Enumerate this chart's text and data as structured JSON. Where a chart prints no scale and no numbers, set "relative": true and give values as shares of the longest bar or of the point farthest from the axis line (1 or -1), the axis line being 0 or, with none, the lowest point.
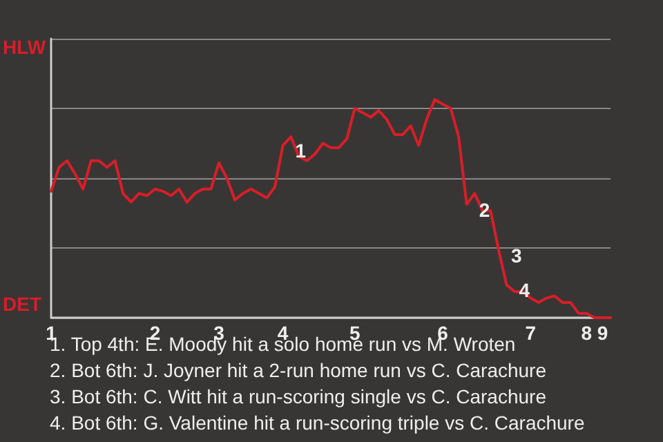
{
  "chart_data": {
    "type": "line",
    "relative": true,
    "categories": [
      "1",
      null,
      null,
      null,
      null,
      null,
      null,
      null,
      null,
      null,
      null,
      null,
      null,
      "2",
      null,
      null,
      null,
      null,
      null,
      null,
      null,
      "3",
      null,
      null,
      null,
      null,
      null,
      null,
      null,
      "4",
      null,
      null,
      null,
      null,
      null,
      null,
      null,
      null,
      "5",
      null,
      null,
      null,
      null,
      null,
      null,
      null,
      null,
      null,
      null,
      "6",
      null,
      null,
      null,
      null,
      null,
      null,
      null,
      null,
      null,
      null,
      "7",
      null,
      null,
      null,
      null,
      null,
      null,
      "8",
      null,
      "9",
      null
    ],
    "series": [
      {
        "color": "#d81e28",
        "values": [
          0.58,
          0.69,
          0.72,
          0.66,
          0.59,
          0.72,
          0.72,
          0.69,
          0.72,
          0.57,
          0.53,
          0.57,
          0.56,
          0.59,
          0.58,
          0.56,
          0.59,
          0.53,
          0.57,
          0.59,
          0.59,
          0.71,
          0.64,
          0.54,
          0.57,
          0.59,
          0.57,
          0.55,
          0.6,
          0.79,
          0.83,
          0.74,
          0.72,
          0.75,
          0.8,
          0.78,
          0.78,
          0.82,
          0.96,
          0.94,
          0.92,
          0.95,
          0.91,
          0.84,
          0.84,
          0.88,
          0.79,
          0.91,
          1,
          0.98,
          0.96,
          0.83,
          0.52,
          0.57,
          0.49,
          0.49,
          0.31,
          0.15,
          0.12,
          0.12,
          0.09,
          0.07,
          0.09,
          0.1,
          0.07,
          0.07,
          0.02,
          0.02,
          0,
          0,
          0
        ]
      }
    ],
    "grid": "y",
    "marker": "none",
    "annotations": [
      "HLW",
      "DET",
      "1",
      "2",
      "3",
      "4",
      "1. Top 4th: E. Moody hit a solo home run vs M. Wroten",
      "2. Bot 6th: J. Joyner hit a 2-run home run vs C. Carachure",
      "3. Bot 6th: C. Witt hit a run-scoring single vs C. Carachure",
      "4. Bot 6th: G. Valentine hit a run-scoring triple vs C. Carachure"
    ]
  }
}
